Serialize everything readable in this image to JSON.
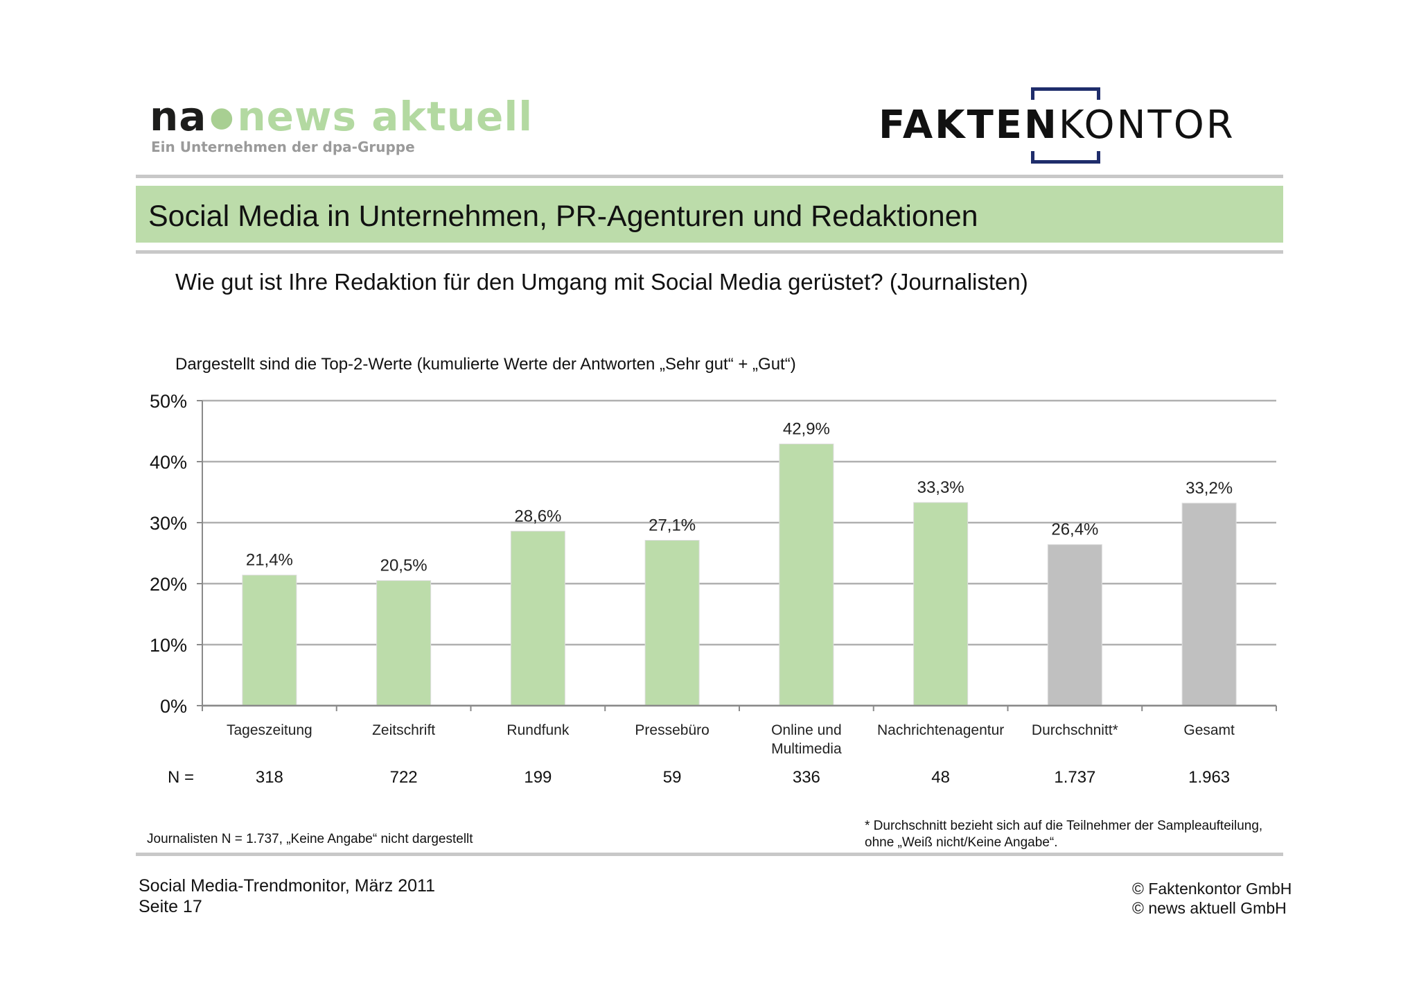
{
  "header": {
    "left_logo": {
      "na": "na",
      "brand": "news aktuell",
      "tagline": "Ein Unternehmen der dpa-Gruppe"
    },
    "right_logo": {
      "bold": "FAKTEN",
      "light": "KONTOR"
    },
    "title": "Social Media in Unternehmen, PR-Agenturen und Redaktionen"
  },
  "question": "Wie gut ist Ihre Redaktion für den Umgang mit Social Media gerüstet? (Journalisten)",
  "note": "Dargestellt sind die Top-2-Werte (kumulierte Werte der Antworten „Sehr gut“ + „Gut“)",
  "chart_data": {
    "type": "bar",
    "categories": [
      "Tageszeitung",
      "Zeitschrift",
      "Rundfunk",
      "Pressebüro",
      "Online und Multimedia",
      "Nachrichtenagentur",
      "Durchschnitt*",
      "Gesamt"
    ],
    "category_lines": [
      [
        "Tageszeitung"
      ],
      [
        "Zeitschrift"
      ],
      [
        "Rundfunk"
      ],
      [
        "Pressebüro"
      ],
      [
        "Online und",
        "Multimedia"
      ],
      [
        "Nachrichtenagentur"
      ],
      [
        "Durchschnitt*"
      ],
      [
        "Gesamt"
      ]
    ],
    "values": [
      21.4,
      20.5,
      28.6,
      27.1,
      42.9,
      33.3,
      26.4,
      33.2
    ],
    "value_labels": [
      "21,4%",
      "20,5%",
      "28,6%",
      "27,1%",
      "42,9%",
      "33,3%",
      "26,4%",
      "33,2%"
    ],
    "bar_colors": [
      "#bcdcaa",
      "#bcdcaa",
      "#bcdcaa",
      "#bcdcaa",
      "#bcdcaa",
      "#bcdcaa",
      "#c0c0c0",
      "#c0c0c0"
    ],
    "yticks": [
      0,
      10,
      20,
      30,
      40,
      50
    ],
    "ytick_labels": [
      "0%",
      "10%",
      "20%",
      "30%",
      "40%",
      "50%"
    ],
    "ylim": [
      0,
      50
    ],
    "grid": true,
    "title": "",
    "xlabel": "",
    "ylabel": ""
  },
  "sample": {
    "label": "N =",
    "values": [
      "318",
      "722",
      "199",
      "59",
      "336",
      "48",
      "1.737",
      "1.963"
    ]
  },
  "footnotes": {
    "left": "Journalisten N = 1.737, „Keine Angabe“ nicht dargestellt",
    "right_line1": "* Durchschnitt bezieht sich auf die Teilnehmer der Sampleaufteilung,",
    "right_line2": "ohne „Weiß nicht/Keine Angabe“."
  },
  "footer": {
    "left_line1": "Social Media-Trendmonitor, März 2011",
    "left_line2": "Seite 17",
    "right_line1": "© Faktenkontor GmbH",
    "right_line2": "© news aktuell GmbH"
  },
  "colors": {
    "accent_green": "#bcdcaa",
    "bar_gray": "#c0c0c0",
    "rule_gray": "#c8c8c8",
    "fk_blue": "#1f2d6b"
  }
}
